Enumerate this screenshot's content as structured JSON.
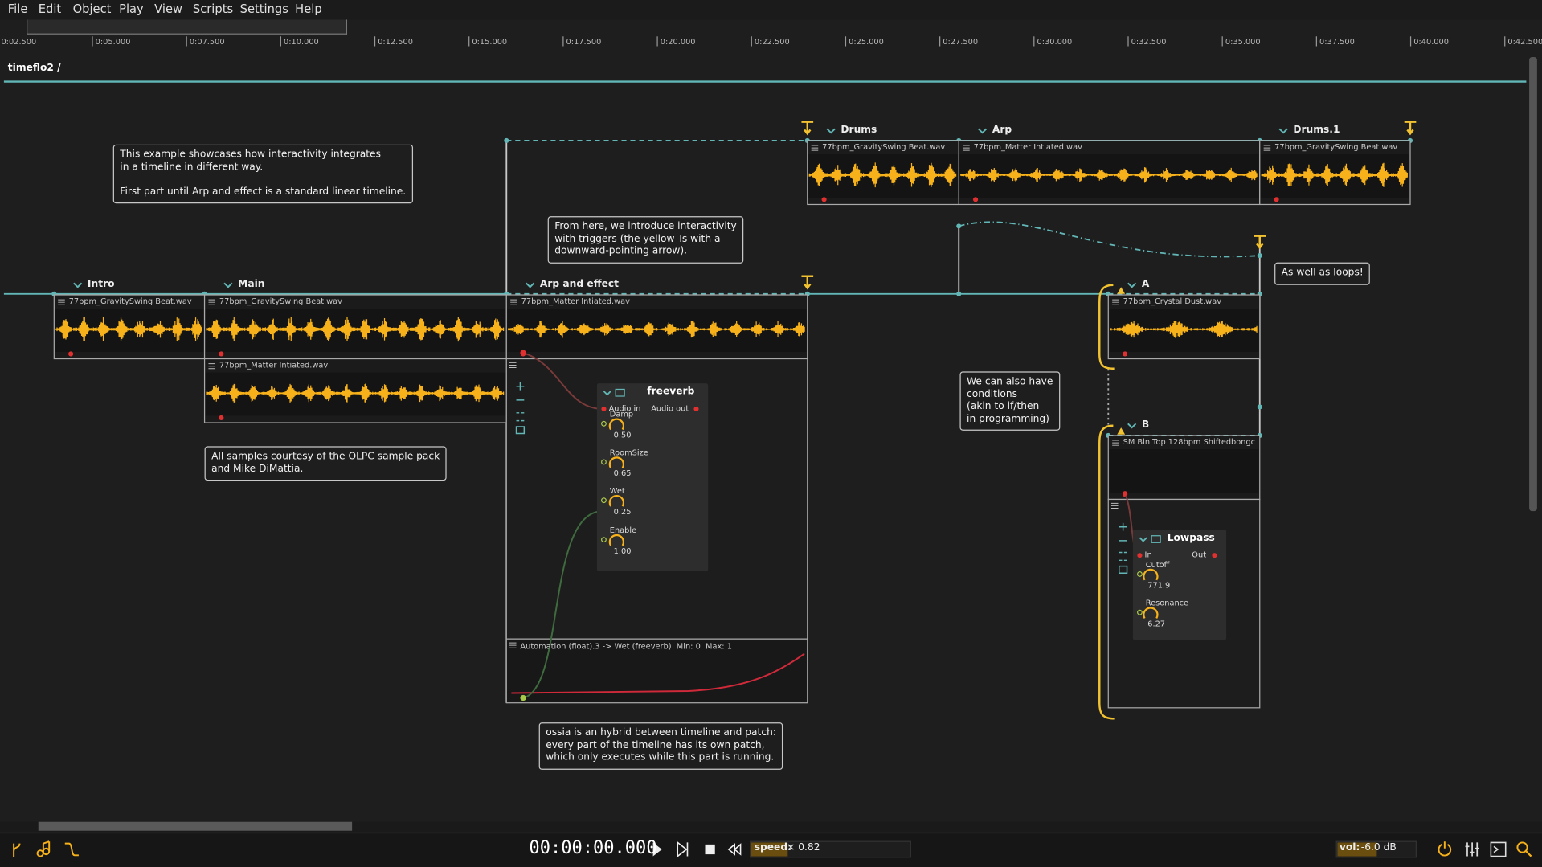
{
  "menu": [
    "File",
    "Edit",
    "Object",
    "Play",
    "View",
    "Scripts",
    "Settings",
    "Help"
  ],
  "ruler": [
    "0:02.500",
    "0:05.000",
    "0:07.500",
    "0:10.000",
    "0:12.500",
    "0:15.000",
    "0:17.500",
    "0:20.000",
    "0:22.500",
    "0:25.000",
    "0:27.500",
    "0:30.000",
    "0:32.500",
    "0:35.000",
    "0:37.500",
    "0:40.000",
    "0:42.500"
  ],
  "breadcrumb": "timeflo2 /",
  "intervals": [
    {
      "name": "Intro",
      "files": [
        "77bpm_GravitySwing Beat.wav"
      ]
    },
    {
      "name": "Main",
      "files": [
        "77bpm_GravitySwing Beat.wav",
        "77bpm_Matter Intiated.wav"
      ]
    },
    {
      "name": "Arp and effect",
      "files": [
        "77bpm_Matter Intiated.wav"
      ]
    },
    {
      "name": "Drums",
      "files": [
        "77bpm_GravitySwing Beat.wav"
      ]
    },
    {
      "name": "Arp",
      "files": [
        "77bpm_Matter Intiated.wav"
      ]
    },
    {
      "name": "Drums.1",
      "files": [
        "77bpm_GravitySwing Beat.wav"
      ]
    },
    {
      "name": "A",
      "files": [
        "77bpm_Crystal Dust.wav"
      ]
    },
    {
      "name": "B",
      "files": [
        "SM Bln Top 128bpm Shiftedbongc"
      ]
    }
  ],
  "comments": [
    "This example showcases how interactivity integrates\nin a timeline in different way.\n\nFirst part until Arp and effect is a standard linear timeline.",
    "From here, we introduce interactivity\nwith triggers (the yellow Ts with a\ndownward-pointing arrow).",
    "All samples courtesy of the OLPC sample pack\nand Mike DiMattia.",
    "We can also have\nconditions\n(akin to if/then\nin programming)",
    "As well as loops!",
    "ossia is an hybrid between timeline and patch:\nevery part of the timeline has its own patch,\nwhich only executes while this part is running."
  ],
  "freeverb": {
    "title": "freeverb",
    "input": "Audio in",
    "output": "Audio out",
    "params": [
      {
        "name": "Damp",
        "value": "0.50"
      },
      {
        "name": "RoomSize",
        "value": "0.65"
      },
      {
        "name": "Wet",
        "value": "0.25"
      },
      {
        "name": "Enable",
        "value": "1.00"
      }
    ]
  },
  "automation": "Automation (float).3 -> Wet (freeverb)  Min: 0  Max: 1",
  "lowpass": {
    "title": "Lowpass",
    "input": "In",
    "output": "Out",
    "params": [
      {
        "name": "Cutoff",
        "value": "771.9"
      },
      {
        "name": "Resonance",
        "value": "6.27"
      }
    ]
  },
  "transport": {
    "time": "00:00:00.000",
    "speed_label": "speed:",
    "speed": "× 0.82",
    "volume_label": "vol:",
    "volume": "-6.0 dB"
  }
}
